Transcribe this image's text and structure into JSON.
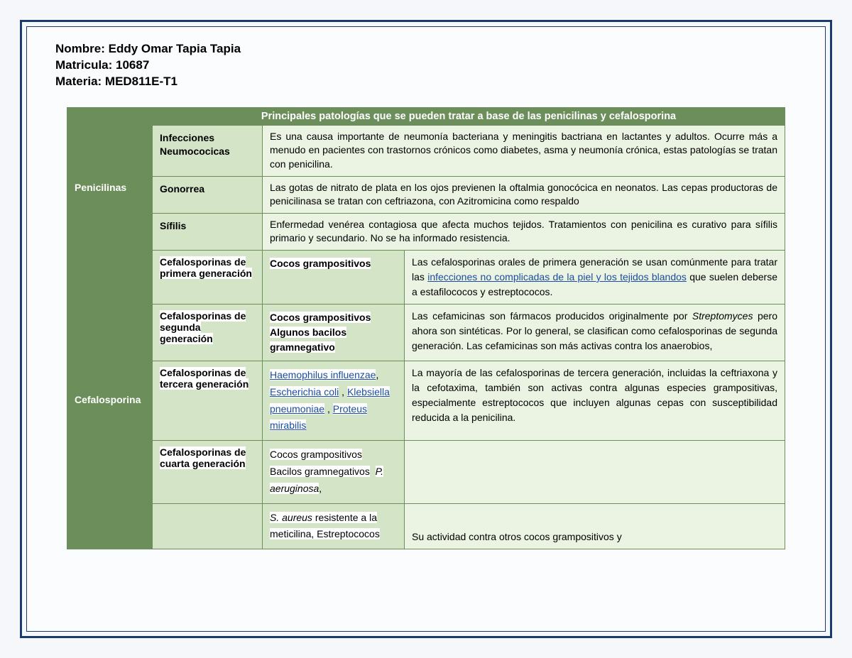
{
  "header": {
    "line1": "Nombre: Eddy Omar Tapia Tapia",
    "line2": "Matricula: 10687",
    "line3": "Materia: MED811E-T1"
  },
  "table": {
    "title": "Principales patologías que se pueden tratar a base de las penicilinas y cefalosporina",
    "penicilinas": {
      "label": "Penicilinas",
      "rows": [
        {
          "sub": "Infecciones Neumococicas",
          "desc": "Es una causa importante de neumonía bacteriana y meningitis bactriana en lactantes y adultos. Ocurre más a menudo en pacientes con trastornos crónicos como diabetes, asma y neumonía crónica, estas patologías se tratan con penicilina."
        },
        {
          "sub": "Gonorrea",
          "desc": "Las gotas de nitrato de plata en los ojos previenen la oftalmia gonocócica en neonatos. Las cepas productoras de penicilinasa se tratan con ceftriazona, con Azitromicina como respaldo"
        },
        {
          "sub": "Sífilis",
          "desc": "Enfermedad venérea contagiosa que afecta muchos tejidos. Tratamientos con penicilina es curativo para sífilis primario y secundario. No se ha informado resistencia."
        }
      ]
    },
    "cefalosporina": {
      "label": "Cefalosporina",
      "rows": [
        {
          "sub": "Cefalosporinas de primera generación",
          "mid": "Cocos grampositivos",
          "desc_pre": "Las cefalosporinas orales de primera generación se usan comúnmente para tratar las ",
          "desc_link": "infecciones no complicadas de la piel y los tejidos blandos",
          "desc_post": " que suelen deberse a estafilococos y estreptococos."
        },
        {
          "sub": "Cefalosporinas de segunda generación",
          "mid_l1": "Cocos grampositivos",
          "mid_l2": "Algunos bacilos gramnegativo",
          "desc": "Las cefamicinas son fármacos producidos originalmente por Streptomyces pero ahora son sintéticas. Por lo general, se clasifican como cefalosporinas de segunda generación. Las cefamicinas son más activas contra los anaerobios,"
        },
        {
          "sub": "Cefalosporinas de tercera generación",
          "mid_links": [
            "Haemophilus influenzae",
            "Escherichia coli",
            "Klebsiella pneumoniae",
            "Proteus mirabilis"
          ],
          "desc": "La mayoría de las cefalosporinas de tercera generación, incluidas la ceftriaxona y la cefotaxima, también son activas contra algunas especies grampositivas, especialmente estreptococos que incluyen algunas cepas con susceptibilidad reducida a la penicilina."
        },
        {
          "sub": "Cefalosporinas de cuarta generación",
          "mid_l1": "Cocos grampositivos",
          "mid_l2_a": "Bacilos gramnegativos",
          "mid_l2_b": "P. aeruginosa",
          "desc": ""
        },
        {
          "mid_l1_a": "S. aureus",
          "mid_l1_b": " resistente a la meticilina, Estreptococos",
          "desc": "Su actividad contra otros cocos grampositivos y"
        }
      ]
    }
  },
  "colors": {
    "border": "#1a3a6e",
    "header_green": "#6b8e5a",
    "mid_green": "#d4e4c6",
    "light_green": "#ebf3e3",
    "link": "#1a4d9e"
  }
}
